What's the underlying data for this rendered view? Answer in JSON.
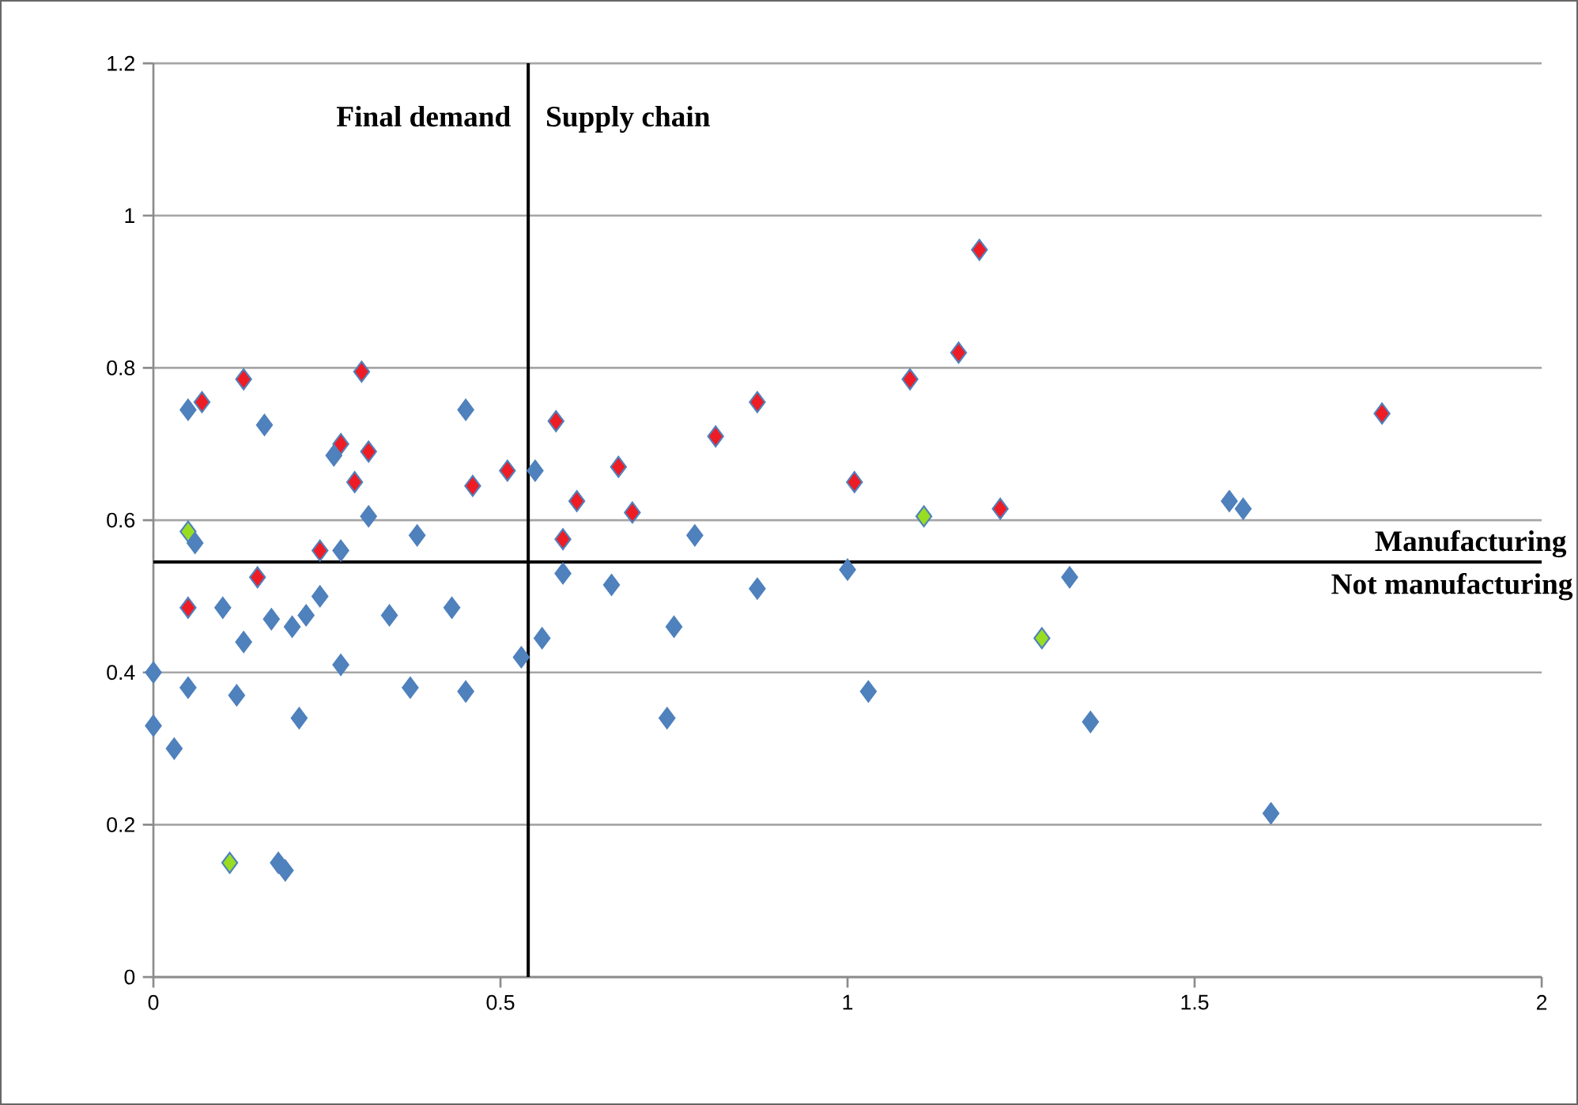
{
  "chart_data": {
    "type": "scatter",
    "marker": "diamond",
    "grid": "y",
    "xlim": [
      0,
      2
    ],
    "ylim": [
      0,
      1.2
    ],
    "xticks": [
      0,
      0.5,
      1,
      1.5,
      2
    ],
    "yticks": [
      0,
      0.2,
      0.4,
      0.6,
      0.8,
      1,
      1.2
    ],
    "ref_lines": [
      {
        "axis": "x",
        "value": 0.54,
        "color": "#000000"
      },
      {
        "axis": "y",
        "value": 0.545,
        "color": "#000000"
      }
    ],
    "annotations": [
      "Final demand",
      "Supply chain",
      "Manufacturing",
      "Not manufacturing"
    ],
    "series": [
      {
        "color": "#4f81bd",
        "x": [
          0.0,
          0.0,
          0.03,
          0.05,
          0.06,
          0.05,
          0.1,
          0.12,
          0.13,
          0.16,
          0.17,
          0.18,
          0.19,
          0.2,
          0.21,
          0.22,
          0.24,
          0.26,
          0.27,
          0.27,
          0.31,
          0.34,
          0.37,
          0.38,
          0.43,
          0.45,
          0.45,
          0.53,
          0.55,
          0.56,
          0.59,
          0.66,
          0.74,
          0.75,
          0.78,
          0.87,
          1.0,
          1.03,
          1.32,
          1.35,
          1.55,
          1.57,
          1.61
        ],
        "values": [
          0.4,
          0.33,
          0.3,
          0.745,
          0.57,
          0.38,
          0.485,
          0.37,
          0.44,
          0.725,
          0.47,
          0.15,
          0.14,
          0.46,
          0.34,
          0.475,
          0.5,
          0.685,
          0.56,
          0.41,
          0.605,
          0.475,
          0.38,
          0.58,
          0.485,
          0.745,
          0.375,
          0.42,
          0.665,
          0.445,
          0.53,
          0.515,
          0.34,
          0.46,
          0.58,
          0.51,
          0.535,
          0.375,
          0.525,
          0.335,
          0.625,
          0.615,
          0.215
        ]
      },
      {
        "color": "#ee1c25",
        "x": [
          0.05,
          0.07,
          0.13,
          0.15,
          0.24,
          0.27,
          0.29,
          0.3,
          0.31,
          0.46,
          0.51,
          0.58,
          0.59,
          0.61,
          0.67,
          0.69,
          0.81,
          0.87,
          1.01,
          1.09,
          1.16,
          1.19,
          1.22,
          1.77
        ],
        "values": [
          0.485,
          0.755,
          0.785,
          0.525,
          0.56,
          0.7,
          0.65,
          0.795,
          0.69,
          0.645,
          0.665,
          0.73,
          0.575,
          0.625,
          0.67,
          0.61,
          0.71,
          0.755,
          0.65,
          0.785,
          0.82,
          0.955,
          0.615,
          0.74
        ]
      },
      {
        "color": "#99dd22",
        "x": [
          0.05,
          0.11,
          1.11,
          1.28
        ],
        "values": [
          0.585,
          0.15,
          0.605,
          0.445
        ]
      }
    ]
  }
}
